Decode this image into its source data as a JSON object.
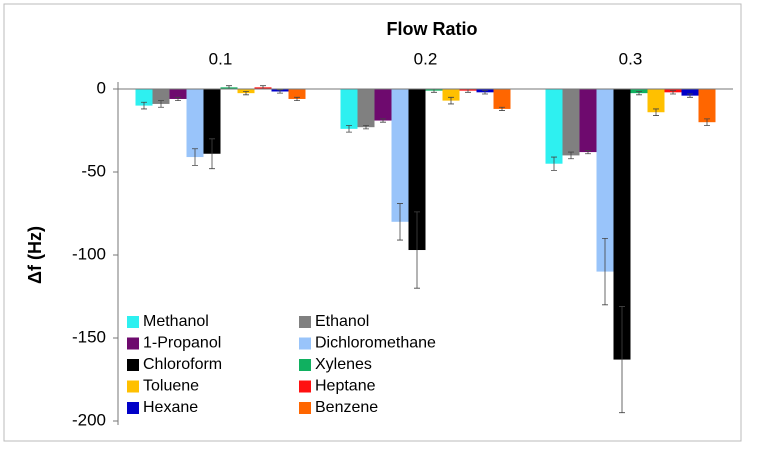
{
  "chart_data": {
    "type": "bar",
    "title": "Flow Ratio",
    "y_label": "Δf (Hz)",
    "categories": [
      "0.1",
      "0.2",
      "0.3"
    ],
    "ylim": [
      -200,
      0
    ],
    "yticks": [
      0,
      -50,
      -100,
      -150,
      -200
    ],
    "series": [
      {
        "name": "Methanol",
        "color": "#2ef0f0",
        "values": [
          -10,
          -24,
          -45
        ],
        "errors": [
          2,
          2,
          4
        ]
      },
      {
        "name": "Ethanol",
        "color": "#808080",
        "values": [
          -9,
          -23,
          -40
        ],
        "errors": [
          2,
          1,
          2
        ]
      },
      {
        "name": "1-Propanol",
        "color": "#6e0a6e",
        "values": [
          -6,
          -19,
          -38
        ],
        "errors": [
          1,
          1,
          1
        ]
      },
      {
        "name": "Dichloromethane",
        "color": "#99c4fa",
        "values": [
          -41,
          -80,
          -110
        ],
        "errors": [
          5,
          11,
          20
        ]
      },
      {
        "name": "Chloroform",
        "color": "#000000",
        "values": [
          -39,
          -97,
          -163
        ],
        "errors": [
          9,
          23,
          32
        ]
      },
      {
        "name": "Xylenes",
        "color": "#10b060",
        "values": [
          1,
          -1,
          -2.5
        ],
        "errors": [
          1,
          1,
          1
        ]
      },
      {
        "name": "Toluene",
        "color": "#ffc000",
        "values": [
          -2.5,
          -7,
          -14
        ],
        "errors": [
          1,
          2,
          2
        ]
      },
      {
        "name": "Heptane",
        "color": "#ff1010",
        "values": [
          1,
          -1,
          -2
        ],
        "errors": [
          1,
          1,
          1
        ]
      },
      {
        "name": "Hexane",
        "color": "#0000c8",
        "values": [
          -1.5,
          -2,
          -4
        ],
        "errors": [
          1,
          1,
          1
        ]
      },
      {
        "name": "Benzene",
        "color": "#ff6600",
        "values": [
          -6,
          -12,
          -20
        ],
        "errors": [
          1,
          1,
          2
        ]
      }
    ]
  }
}
